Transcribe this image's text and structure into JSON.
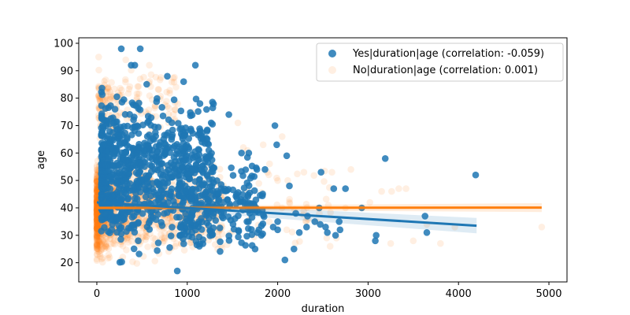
{
  "chart_data": {
    "type": "scatter",
    "title": "",
    "xlabel": "duration",
    "ylabel": "age",
    "xlim": [
      -200,
      5200
    ],
    "ylim": [
      13,
      102
    ],
    "xticks": [
      0,
      1000,
      2000,
      3000,
      4000,
      5000
    ],
    "yticks": [
      20,
      30,
      40,
      50,
      60,
      70,
      80,
      90,
      100
    ],
    "grid": false,
    "legend_position": "top-right",
    "series": [
      {
        "name": "No|duration|age (correlation: 0.001)",
        "color": "#ff7f0e",
        "marker_alpha": 0.12,
        "regression": {
          "x": [
            0,
            4920
          ],
          "y": [
            40.0,
            40.1
          ],
          "ci_halfwidth": [
            0.6,
            1.6
          ]
        },
        "clusters": [
          {
            "x": [
              0,
              1400
            ],
            "y": [
              18,
              61
            ],
            "n": 1400,
            "x_skew": 3.0
          },
          {
            "x": [
              20,
              900
            ],
            "y": [
              61,
              95
            ],
            "n": 180,
            "x_skew": 2.0
          },
          {
            "x": [
              900,
              2600
            ],
            "y": [
              18,
              66
            ],
            "n": 90,
            "x_skew": 1.5
          }
        ],
        "points": [
          {
            "x": 1050,
            "y": 75
          },
          {
            "x": 1560,
            "y": 71
          },
          {
            "x": 1620,
            "y": 62
          },
          {
            "x": 1840,
            "y": 63
          },
          {
            "x": 2050,
            "y": 66
          },
          {
            "x": 2290,
            "y": 53
          },
          {
            "x": 2810,
            "y": 54
          },
          {
            "x": 2600,
            "y": 53
          },
          {
            "x": 3020,
            "y": 42
          },
          {
            "x": 3150,
            "y": 46
          },
          {
            "x": 3260,
            "y": 46
          },
          {
            "x": 3340,
            "y": 47
          },
          {
            "x": 3420,
            "y": 47
          },
          {
            "x": 3250,
            "y": 27
          },
          {
            "x": 3500,
            "y": 28
          },
          {
            "x": 3800,
            "y": 27
          },
          {
            "x": 3960,
            "y": 33
          },
          {
            "x": 4920,
            "y": 33
          },
          {
            "x": 2430,
            "y": 35
          },
          {
            "x": 2580,
            "y": 26
          },
          {
            "x": 2650,
            "y": 29
          },
          {
            "x": 2450,
            "y": 40
          },
          {
            "x": 20,
            "y": 95
          },
          {
            "x": 320,
            "y": 94
          },
          {
            "x": 580,
            "y": 92
          },
          {
            "x": 2100,
            "y": 32
          },
          {
            "x": 2750,
            "y": 40
          },
          {
            "x": 3650,
            "y": 34
          }
        ]
      },
      {
        "name": "Yes|duration|age (correlation: -0.059)",
        "color": "#1f77b4",
        "marker_alpha": 0.85,
        "regression": {
          "x": [
            0,
            4200
          ],
          "y": [
            42.0,
            33.5
          ],
          "ci_halfwidth": [
            1.0,
            2.8
          ]
        },
        "clusters": [
          {
            "x": [
              50,
              1300
            ],
            "y": [
              18,
              88
            ],
            "n": 850,
            "x_skew": 1.6
          },
          {
            "x": [
              900,
              1850
            ],
            "y": [
              19,
              61
            ],
            "n": 220,
            "x_skew": 1.0
          }
        ],
        "points": [
          {
            "x": 270,
            "y": 98
          },
          {
            "x": 480,
            "y": 98
          },
          {
            "x": 380,
            "y": 92
          },
          {
            "x": 420,
            "y": 92
          },
          {
            "x": 1090,
            "y": 92
          },
          {
            "x": 960,
            "y": 86
          },
          {
            "x": 780,
            "y": 88
          },
          {
            "x": 1140,
            "y": 78
          },
          {
            "x": 1460,
            "y": 74
          },
          {
            "x": 1220,
            "y": 68
          },
          {
            "x": 1970,
            "y": 70
          },
          {
            "x": 1990,
            "y": 63
          },
          {
            "x": 2100,
            "y": 59
          },
          {
            "x": 2130,
            "y": 48
          },
          {
            "x": 1860,
            "y": 54
          },
          {
            "x": 2330,
            "y": 37
          },
          {
            "x": 2410,
            "y": 35
          },
          {
            "x": 2200,
            "y": 38
          },
          {
            "x": 2240,
            "y": 31
          },
          {
            "x": 2180,
            "y": 25
          },
          {
            "x": 2080,
            "y": 21
          },
          {
            "x": 2480,
            "y": 53
          },
          {
            "x": 2620,
            "y": 47
          },
          {
            "x": 2750,
            "y": 47
          },
          {
            "x": 2460,
            "y": 40
          },
          {
            "x": 2470,
            "y": 34
          },
          {
            "x": 2530,
            "y": 33
          },
          {
            "x": 2550,
            "y": 31
          },
          {
            "x": 2640,
            "y": 30
          },
          {
            "x": 2680,
            "y": 35
          },
          {
            "x": 2690,
            "y": 32
          },
          {
            "x": 2320,
            "y": 33
          },
          {
            "x": 2930,
            "y": 40
          },
          {
            "x": 3190,
            "y": 58
          },
          {
            "x": 3090,
            "y": 30
          },
          {
            "x": 3080,
            "y": 28
          },
          {
            "x": 3630,
            "y": 37
          },
          {
            "x": 3650,
            "y": 31
          },
          {
            "x": 4190,
            "y": 52
          },
          {
            "x": 1750,
            "y": 25
          },
          {
            "x": 1820,
            "y": 30
          },
          {
            "x": 1600,
            "y": 60
          },
          {
            "x": 1680,
            "y": 60
          },
          {
            "x": 1770,
            "y": 54
          },
          {
            "x": 2000,
            "y": 35
          },
          {
            "x": 2000,
            "y": 32
          },
          {
            "x": 1950,
            "y": 33
          },
          {
            "x": 890,
            "y": 17
          }
        ]
      }
    ]
  }
}
